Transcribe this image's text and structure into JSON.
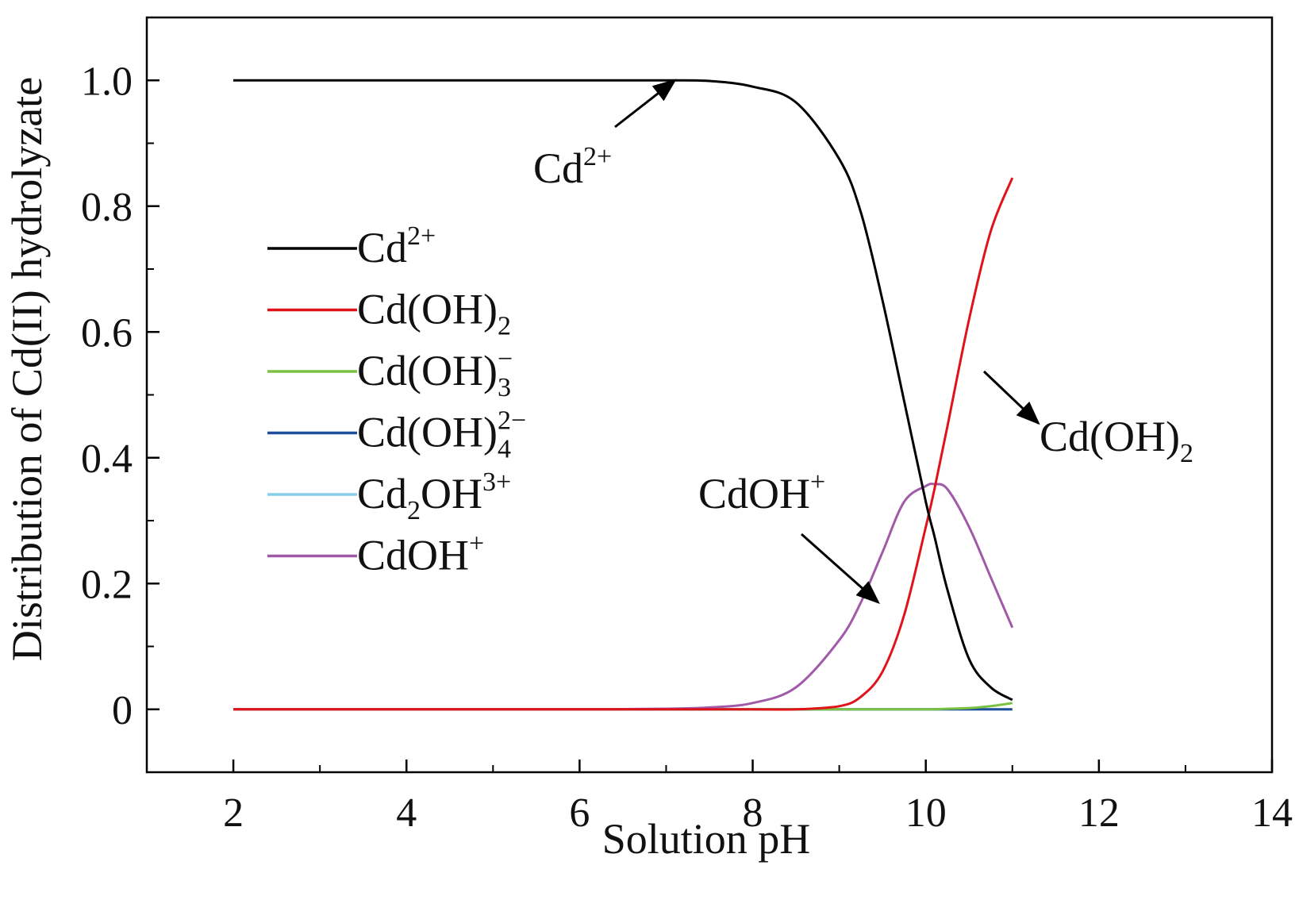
{
  "chart_data": {
    "type": "line",
    "xlabel": "Solution pH",
    "ylabel": "Distribution of Cd(II) hydrolyzate",
    "xlim": [
      1,
      14
    ],
    "ylim": [
      -0.1,
      1.1
    ],
    "xticks": [
      {
        "value": 2,
        "label": "2"
      },
      {
        "value": 4,
        "label": "4"
      },
      {
        "value": 6,
        "label": "6"
      },
      {
        "value": 8,
        "label": "8"
      },
      {
        "value": 10,
        "label": "10"
      },
      {
        "value": 12,
        "label": "12"
      },
      {
        "value": 14,
        "label": "14"
      }
    ],
    "yticks": [
      {
        "value": 0,
        "label": "0"
      },
      {
        "value": 0.2,
        "label": "0.2"
      },
      {
        "value": 0.4,
        "label": "0.4"
      },
      {
        "value": 0.6,
        "label": "0.6"
      },
      {
        "value": 0.8,
        "label": "0.8"
      },
      {
        "value": 1.0,
        "label": "1.0"
      }
    ],
    "grid": false,
    "legend_position": "left",
    "x": [
      2,
      3,
      4,
      5,
      6,
      7,
      7.5,
      8,
      8.5,
      9,
      9.25,
      9.5,
      9.75,
      10,
      10.1,
      10.25,
      10.5,
      10.75,
      11
    ],
    "series": [
      {
        "name": "Cd",
        "sup": "2+",
        "sub": "",
        "color": "#000000",
        "values": [
          1.0,
          1.0,
          1.0,
          1.0,
          1.0,
          1.0,
          0.999,
          0.99,
          0.965,
          0.875,
          0.79,
          0.65,
          0.49,
          0.33,
          0.275,
          0.19,
          0.08,
          0.035,
          0.015
        ]
      },
      {
        "name": "Cd(OH)",
        "sup": "",
        "sub": "2",
        "color": "#e0131a",
        "values": [
          0,
          0,
          0,
          0,
          0,
          0,
          0,
          0,
          0,
          0.005,
          0.02,
          0.06,
          0.15,
          0.29,
          0.35,
          0.45,
          0.62,
          0.76,
          0.845
        ]
      },
      {
        "name": "Cd(OH)",
        "sup": "−",
        "sub": "3",
        "color": "#7ac142",
        "values": [
          0,
          0,
          0,
          0,
          0,
          0,
          0,
          0,
          0,
          0,
          0,
          0,
          0,
          0,
          0,
          0.001,
          0.002,
          0.005,
          0.01
        ]
      },
      {
        "name": "Cd(OH)",
        "sup": "2−",
        "sub": "4",
        "color": "#1f4e9c",
        "values": [
          0,
          0,
          0,
          0,
          0,
          0,
          0,
          0,
          0,
          0,
          0,
          0,
          0,
          0,
          0,
          0,
          0,
          0,
          0
        ]
      },
      {
        "name": "Cd",
        "sup": "3+",
        "sub": "2",
        "name2": "OH",
        "color": "#87ceeb",
        "values": [
          0,
          0,
          0,
          0,
          0,
          0,
          0,
          0,
          0,
          0,
          0,
          0,
          0,
          0,
          0,
          0,
          0,
          0,
          0
        ]
      },
      {
        "name": "CdOH",
        "sup": "+",
        "sub": "",
        "color": "#a05aa8",
        "values": [
          0,
          0,
          0,
          0,
          0,
          0.001,
          0.003,
          0.01,
          0.035,
          0.11,
          0.17,
          0.25,
          0.33,
          0.355,
          0.358,
          0.35,
          0.29,
          0.21,
          0.13
        ]
      }
    ],
    "annotations": [
      {
        "name": "Cd",
        "sup": "2+",
        "sub": "",
        "target_x": 7.1,
        "target_y": 1.0
      },
      {
        "name": "Cd(OH)",
        "sup": "",
        "sub": "2",
        "target_x": 11.3,
        "target_y": 0.455
      },
      {
        "name": "CdOH",
        "sup": "+",
        "sub": "",
        "target_x": 9.45,
        "target_y": 0.17
      }
    ]
  }
}
